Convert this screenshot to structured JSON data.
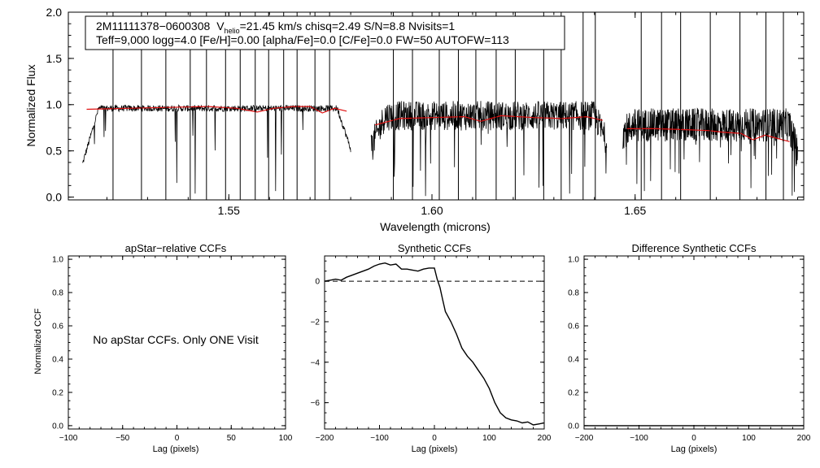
{
  "chart_data": [
    {
      "type": "line",
      "id": "spectrum",
      "xlabel": "Wavelength (microns)",
      "ylabel": "Normalized Flux",
      "xlim": [
        1.5105,
        1.6915
      ],
      "ylim": [
        -0.03,
        2.0
      ],
      "xticks": [
        {
          "v": 1.55,
          "label": "1.55"
        },
        {
          "v": 1.6,
          "label": "1.60"
        },
        {
          "v": 1.65,
          "label": "1.65"
        }
      ],
      "yticks": [
        {
          "v": 0.0,
          "label": "0.0"
        },
        {
          "v": 0.5,
          "label": "0.5"
        },
        {
          "v": 1.0,
          "label": "1.0"
        },
        {
          "v": 1.5,
          "label": "1.5"
        },
        {
          "v": 2.0,
          "label": "2.0"
        }
      ],
      "info": {
        "star": "2M11111378−0600308",
        "v_prefix": "V",
        "v_sub": "helio",
        "v_rest": "=21.45 km/s  chisq=2.49  S/N=8.8  Nvisits=1",
        "line2": "Teff=9,000 logg=4.0 [Fe/H]=0.00 [alpha/Fe]=0.0 [C/Fe]=0.0 FW=50 AUTOFW=113"
      },
      "chips": [
        {
          "range": [
            1.514,
            1.58
          ],
          "obs_level": 0.96,
          "obs_edge_start": 0.36,
          "obs_edge_end": 0.52,
          "model": [
            [
              1.515,
              0.95
            ],
            [
              1.525,
              0.96
            ],
            [
              1.535,
              0.97
            ],
            [
              1.545,
              0.98
            ],
            [
              1.552,
              0.96
            ],
            [
              1.557,
              0.92
            ],
            [
              1.561,
              0.96
            ],
            [
              1.566,
              0.98
            ],
            [
              1.57,
              0.98
            ],
            [
              1.573,
              0.91
            ],
            [
              1.576,
              0.96
            ],
            [
              1.579,
              0.93
            ]
          ]
        },
        {
          "range": [
            1.585,
            1.643
          ],
          "obs_level": 0.88,
          "obs_edge_start": 0.55,
          "obs_edge_end": 0.6,
          "model": [
            [
              1.586,
              0.78
            ],
            [
              1.592,
              0.85
            ],
            [
              1.6,
              0.86
            ],
            [
              1.608,
              0.87
            ],
            [
              1.612,
              0.82
            ],
            [
              1.617,
              0.88
            ],
            [
              1.625,
              0.86
            ],
            [
              1.632,
              0.85
            ],
            [
              1.638,
              0.87
            ],
            [
              1.642,
              0.83
            ]
          ]
        },
        {
          "range": [
            1.647,
            1.69
          ],
          "obs_level": 0.78,
          "obs_edge_start": 0.7,
          "obs_edge_end": 0.5,
          "model": [
            [
              1.648,
              0.74
            ],
            [
              1.655,
              0.74
            ],
            [
              1.662,
              0.73
            ],
            [
              1.668,
              0.72
            ],
            [
              1.672,
              0.7
            ],
            [
              1.676,
              0.69
            ],
            [
              1.679,
              0.62
            ],
            [
              1.682,
              0.67
            ],
            [
              1.688,
              0.6
            ]
          ]
        }
      ],
      "spikes": [
        1.5215,
        1.5285,
        1.5345,
        1.5405,
        1.5445,
        1.5492,
        1.5528,
        1.5565,
        1.5598,
        1.5635,
        1.5668,
        1.5712,
        1.5748,
        1.5905,
        1.5952,
        1.6018,
        1.6065,
        1.6108,
        1.6158,
        1.6205,
        1.6275,
        1.6318,
        1.6372,
        1.6402,
        1.6515,
        1.6565,
        1.6612,
        1.6685,
        1.6758,
        1.6822,
        1.6865
      ]
    },
    {
      "type": "line",
      "id": "apstar",
      "title": "apStar−relative CCFs",
      "xlabel": "Lag (pixels)",
      "ylabel": "Normalized CCF",
      "xlim": [
        -100,
        100
      ],
      "ylim": [
        -0.02,
        1.02
      ],
      "xticks": [
        {
          "v": -100,
          "label": "−100"
        },
        {
          "v": -50,
          "label": "−50"
        },
        {
          "v": 0,
          "label": "0"
        },
        {
          "v": 50,
          "label": "50"
        },
        {
          "v": 100,
          "label": "100"
        }
      ],
      "yticks": [
        {
          "v": 0.0,
          "label": "0.0"
        },
        {
          "v": 0.2,
          "label": "0.2"
        },
        {
          "v": 0.4,
          "label": "0.4"
        },
        {
          "v": 0.6,
          "label": "0.6"
        },
        {
          "v": 0.8,
          "label": "0.8"
        },
        {
          "v": 1.0,
          "label": "1.0"
        }
      ],
      "note": "No apStar CCFs.  Only ONE Visit"
    },
    {
      "type": "line",
      "id": "synthetic",
      "title": "Synthetic CCFs",
      "xlabel": "Lag (pixels)",
      "xlim": [
        -200,
        200
      ],
      "ylim": [
        -7.3,
        1.25
      ],
      "xticks": [
        {
          "v": -200,
          "label": "−200"
        },
        {
          "v": -100,
          "label": "−100"
        },
        {
          "v": 0,
          "label": "0"
        },
        {
          "v": 100,
          "label": "100"
        },
        {
          "v": 200,
          "label": "200"
        }
      ],
      "yticks": [
        {
          "v": 0,
          "label": "0"
        },
        {
          "v": -2,
          "label": "−2"
        },
        {
          "v": -4,
          "label": "−4"
        },
        {
          "v": -6,
          "label": "−6"
        }
      ],
      "zero_line": 0,
      "series": [
        {
          "name": "ccf",
          "points": [
            [
              -200,
              0.0
            ],
            [
              -190,
              0.05
            ],
            [
              -180,
              0.1
            ],
            [
              -170,
              0.05
            ],
            [
              -160,
              0.2
            ],
            [
              -150,
              0.3
            ],
            [
              -140,
              0.4
            ],
            [
              -130,
              0.5
            ],
            [
              -120,
              0.6
            ],
            [
              -110,
              0.75
            ],
            [
              -100,
              0.85
            ],
            [
              -90,
              0.9
            ],
            [
              -80,
              0.8
            ],
            [
              -70,
              0.85
            ],
            [
              -60,
              0.6
            ],
            [
              -50,
              0.6
            ],
            [
              -40,
              0.55
            ],
            [
              -30,
              0.5
            ],
            [
              -20,
              0.6
            ],
            [
              -10,
              0.65
            ],
            [
              0,
              0.65
            ],
            [
              5,
              0.1
            ],
            [
              10,
              -0.3
            ],
            [
              15,
              -0.9
            ],
            [
              20,
              -1.5
            ],
            [
              30,
              -2.0
            ],
            [
              40,
              -2.6
            ],
            [
              50,
              -3.3
            ],
            [
              60,
              -3.7
            ],
            [
              70,
              -4.0
            ],
            [
              80,
              -4.4
            ],
            [
              90,
              -4.8
            ],
            [
              100,
              -5.3
            ],
            [
              110,
              -6.0
            ],
            [
              120,
              -6.5
            ],
            [
              130,
              -6.75
            ],
            [
              140,
              -6.85
            ],
            [
              150,
              -6.9
            ],
            [
              160,
              -7.0
            ],
            [
              170,
              -6.95
            ],
            [
              180,
              -7.1
            ],
            [
              190,
              -7.05
            ],
            [
              200,
              -7.0
            ]
          ]
        }
      ]
    },
    {
      "type": "line",
      "id": "difference",
      "title": "Difference Synthetic CCFs",
      "xlabel": "Lag (pixels)",
      "xlim": [
        -200,
        200
      ],
      "ylim": [
        -0.02,
        1.02
      ],
      "xticks": [
        {
          "v": -200,
          "label": "−200"
        },
        {
          "v": -100,
          "label": "−100"
        },
        {
          "v": 0,
          "label": "0"
        },
        {
          "v": 100,
          "label": "100"
        },
        {
          "v": 200,
          "label": "200"
        }
      ],
      "yticks": [
        {
          "v": 0.0,
          "label": "0.0"
        },
        {
          "v": 0.2,
          "label": "0.2"
        },
        {
          "v": 0.4,
          "label": "0.4"
        },
        {
          "v": 0.6,
          "label": "0.6"
        },
        {
          "v": 0.8,
          "label": "0.8"
        },
        {
          "v": 1.0,
          "label": "1.0"
        }
      ],
      "series": [
        {
          "name": "difference",
          "points": [
            [
              -200,
              0.0
            ],
            [
              200,
              0.0
            ]
          ]
        }
      ]
    }
  ]
}
